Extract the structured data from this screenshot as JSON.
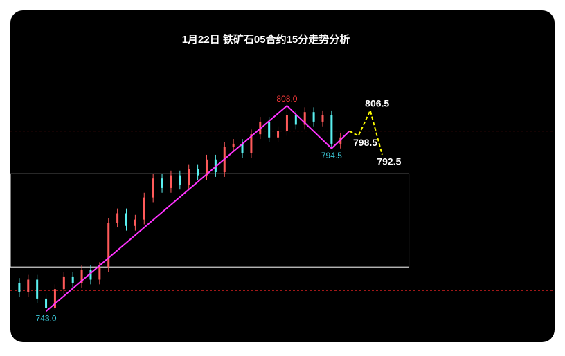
{
  "chart_data": {
    "type": "candlestick",
    "title": "1月22日  铁矿石05合约15分走势分析",
    "xlim": [
      0,
      183
    ],
    "ylim": [
      733.2,
      838.2
    ],
    "candles": {
      "x": [
        0,
        3,
        6,
        9,
        12,
        15,
        18,
        21,
        24,
        27,
        30,
        33,
        36,
        39,
        42,
        45,
        48,
        51,
        54,
        57,
        60,
        63,
        66,
        69,
        72,
        75,
        78,
        81,
        84,
        87,
        90,
        93,
        96,
        99,
        102,
        105,
        108,
        111
      ],
      "open": [
        755,
        752,
        749,
        753,
        747,
        744,
        750,
        754,
        752,
        756,
        753,
        757,
        771,
        774,
        770,
        772,
        779,
        785,
        782,
        786,
        783,
        788,
        786,
        791,
        787,
        795,
        796,
        793,
        799,
        803,
        798,
        800,
        805,
        802,
        806,
        803,
        805,
        796
      ],
      "high": [
        756.5,
        753.5,
        754.5,
        754.5,
        748.5,
        751.5,
        755.5,
        755.5,
        757.5,
        757.5,
        758.5,
        772.5,
        775.5,
        775.5,
        773.5,
        780.5,
        786.5,
        786.5,
        787.5,
        787.5,
        789.5,
        789.5,
        792.5,
        792.5,
        796.5,
        797.5,
        797.5,
        800.5,
        804.5,
        804.5,
        801.5,
        808,
        806.5,
        807.5,
        807.5,
        806.5,
        806.5,
        799.5
      ],
      "low": [
        750.5,
        747.5,
        747.5,
        745.5,
        743,
        743.5,
        748.5,
        750.5,
        750.5,
        751.5,
        751.5,
        755.5,
        769.5,
        768.5,
        768.5,
        770.5,
        777.5,
        780.5,
        780.5,
        781.5,
        781.5,
        784.5,
        784.5,
        785.5,
        785.5,
        793.5,
        791.5,
        791.5,
        797.5,
        796.5,
        796.5,
        798.5,
        800.5,
        800.5,
        801.5,
        801.5,
        794.5,
        794.5
      ],
      "close": [
        752,
        749,
        753,
        747,
        744,
        750,
        754,
        752,
        756,
        753,
        757,
        771,
        774,
        770,
        772,
        779,
        785,
        782,
        786,
        783,
        788,
        786,
        791,
        787,
        795,
        796,
        793,
        799,
        803,
        798,
        800,
        805,
        802,
        806,
        803,
        805,
        796,
        798
      ],
      "up_color": "#ff5a5a",
      "down_color": "#5af0f0"
    },
    "series": [
      {
        "color": "#ff33ff",
        "dashed": false,
        "x": [
          12,
          93,
          108,
          114
        ],
        "values": [
          743,
          808,
          794.5,
          800
        ],
        "value_labels": [
          "743.0",
          "808.0",
          "794.5",
          null
        ],
        "label_colors": [
          "#3cc8d8",
          "#ff3b3b",
          "#3cc8d8",
          null
        ]
      },
      {
        "color": "#ffff00",
        "dashed": true,
        "x": [
          114,
          117,
          121,
          125
        ],
        "values": [
          800,
          798.5,
          806.5,
          792.5
        ],
        "value_labels": [
          null,
          "798.5",
          "806.5",
          "792.5"
        ],
        "label_colors": [
          null,
          "#ffffff",
          "#ffffff",
          "#ffffff"
        ]
      }
    ],
    "hlines": [
      800,
      749.5
    ],
    "hline_color": "#a01818",
    "zone": {
      "x": [
        0,
        134
      ],
      "y": [
        757,
        786.5
      ],
      "color": "#ffffff"
    }
  }
}
